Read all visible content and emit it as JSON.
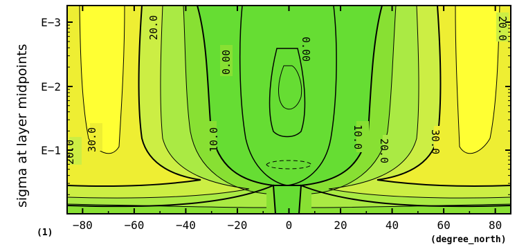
{
  "chart_data": {
    "type": "contour",
    "xlabel": "(degree_north)",
    "ylabel": "sigma at layer midpoints",
    "figure_index": "(1)",
    "x_ticks": [
      -80,
      -60,
      -40,
      -20,
      0,
      20,
      40,
      60,
      80
    ],
    "y_ticks": [
      "E-3",
      "E-2",
      "E-1"
    ],
    "xlim": [
      -86,
      86
    ],
    "y_scale": "log",
    "contour_labels": [
      "20.0",
      "30.0",
      "20.0",
      "10.0",
      "0.00",
      "20.0",
      "0.00",
      "10.0",
      "20.0",
      "30.0",
      "20.0"
    ],
    "fill_colors": {
      "low": "#66dd33",
      "mid_low": "#88e033",
      "mid": "#aaea44",
      "mid_high": "#ccee44",
      "high": "#eeee33",
      "max": "#ffff33"
    }
  }
}
